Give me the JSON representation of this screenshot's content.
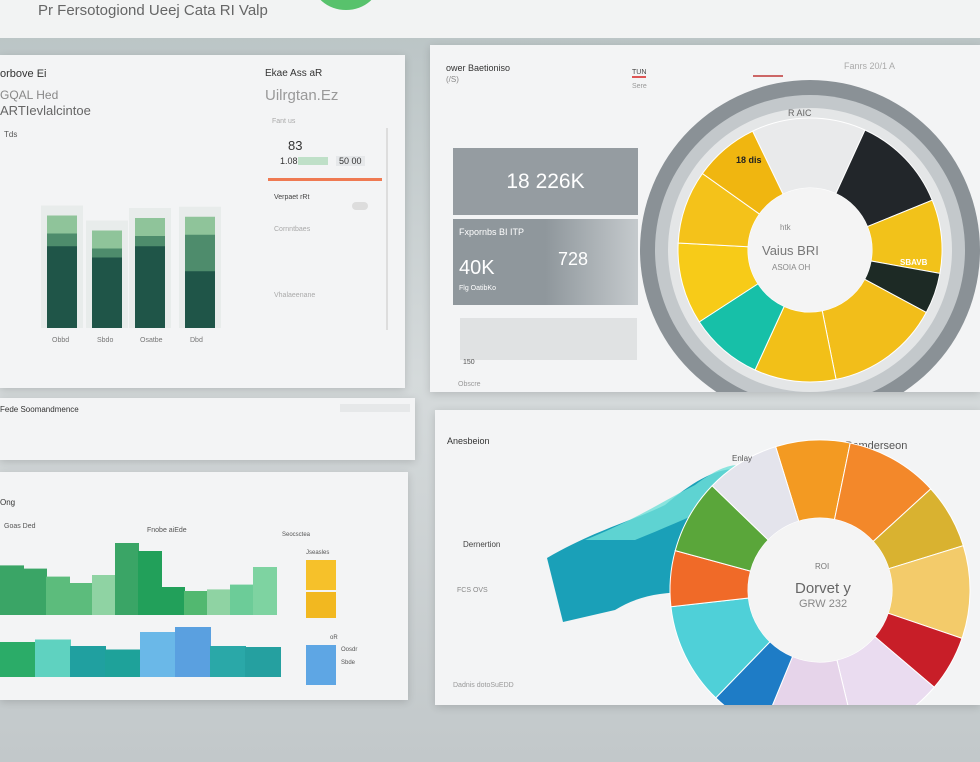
{
  "topbar": {
    "title": "Pr Fersotogiond Ueej Cata RI Valp"
  },
  "panel_a": {
    "title": "orbove Ei",
    "line1": "GQAL Hed",
    "line2": "ARTIevlalcintoe",
    "axis": "Tds",
    "side_title": "Ekae  Ass aR",
    "side_heading": "Uilrgtan.Ez",
    "side_small": "Fant us",
    "value1": "83",
    "value2": "1.08",
    "value3": "50 00",
    "items": [
      "Verpaet rRt",
      "Cornntbaes",
      "Vhalaeenane"
    ],
    "bar_labels": [
      "Obbd",
      "Sbdo",
      "Osatbe",
      "Dbd"
    ],
    "bars": [
      {
        "top": 0.9,
        "mid": 0.75
      },
      {
        "top": 0.78,
        "mid": 0.66
      },
      {
        "top": 0.88,
        "mid": 0.75
      },
      {
        "top": 0.89,
        "mid": 0.55
      }
    ]
  },
  "panel_b": {
    "title": "ower Baetioniso",
    "subtitle": "(/S)",
    "col1": "TUN",
    "col1_sub": "Sere",
    "col3": "Fanrs  20/1 A",
    "kpi1": "18 226K",
    "kpi2_label": "Fxpornbs BI ITP",
    "kpi2_value": "40K",
    "kpi2_side": "728",
    "kpi2_sub": "Flg OatibKo",
    "kpi3": "150",
    "donut_label": "R AIC",
    "donut_center_top": "htk",
    "donut_center": "Vaius BRI",
    "donut_center_sub": "ASOIA OH",
    "slice_label1": "18 dis",
    "slice_label2": "SBAVB",
    "footer": "Obscre"
  },
  "panel_c": {
    "title": "Fede Soomandmence"
  },
  "panel_d": {
    "title": "Ong",
    "label1": "Goas Ded",
    "label2": "Fnobe aiEde",
    "label3": "Seocsctea",
    "legend": [
      "Jseasles",
      "oR",
      "Oosdr",
      "Sbde"
    ],
    "top_bars": [
      0.62,
      0.58,
      0.48,
      0.4,
      0.5,
      0.9,
      0.8,
      0.35,
      0.3,
      0.32,
      0.38,
      0.6
    ],
    "bottom_bars": [
      0.7,
      0.75,
      0.62,
      0.55,
      0.9,
      1.0,
      0.62,
      0.6
    ]
  },
  "panel_e": {
    "title": "Anesbeion",
    "heading": "Pomderseon",
    "wave_label": "Enlay",
    "label_a": "Dernertion",
    "label_b": "FCS OVS",
    "center_top": "ROI",
    "center": "Dorvet y",
    "center_sub": "GRW 232",
    "footer": "Dadnis dotoSuEDD"
  },
  "chart_data": [
    {
      "type": "bar",
      "values": [
        0.9,
        0.78,
        0.88,
        0.89
      ]
    },
    {
      "type": "pie",
      "values": [
        14,
        12,
        9,
        5,
        14,
        10,
        9,
        10,
        9,
        8
      ],
      "colors": [
        "#e9eaeb",
        "#22262a",
        "#f2c21a",
        "#1d2a25",
        "#f2be1a",
        "#f2c018",
        "#17c0a8",
        "#f7cb18",
        "#f4c21a",
        "#f0b610"
      ]
    },
    {
      "type": "pie",
      "values": [
        8,
        10,
        7,
        10,
        6,
        10,
        10,
        6,
        11,
        6,
        8,
        8
      ],
      "colors": [
        "#f39a22",
        "#f3882a",
        "#d9b230",
        "#f3cb6a",
        "#c81e28",
        "#eadcf0",
        "#e6d4ea",
        "#1e7cc6",
        "#4fd0d8",
        "#f06a28",
        "#5aa63a",
        "#e4e4ec"
      ]
    }
  ]
}
